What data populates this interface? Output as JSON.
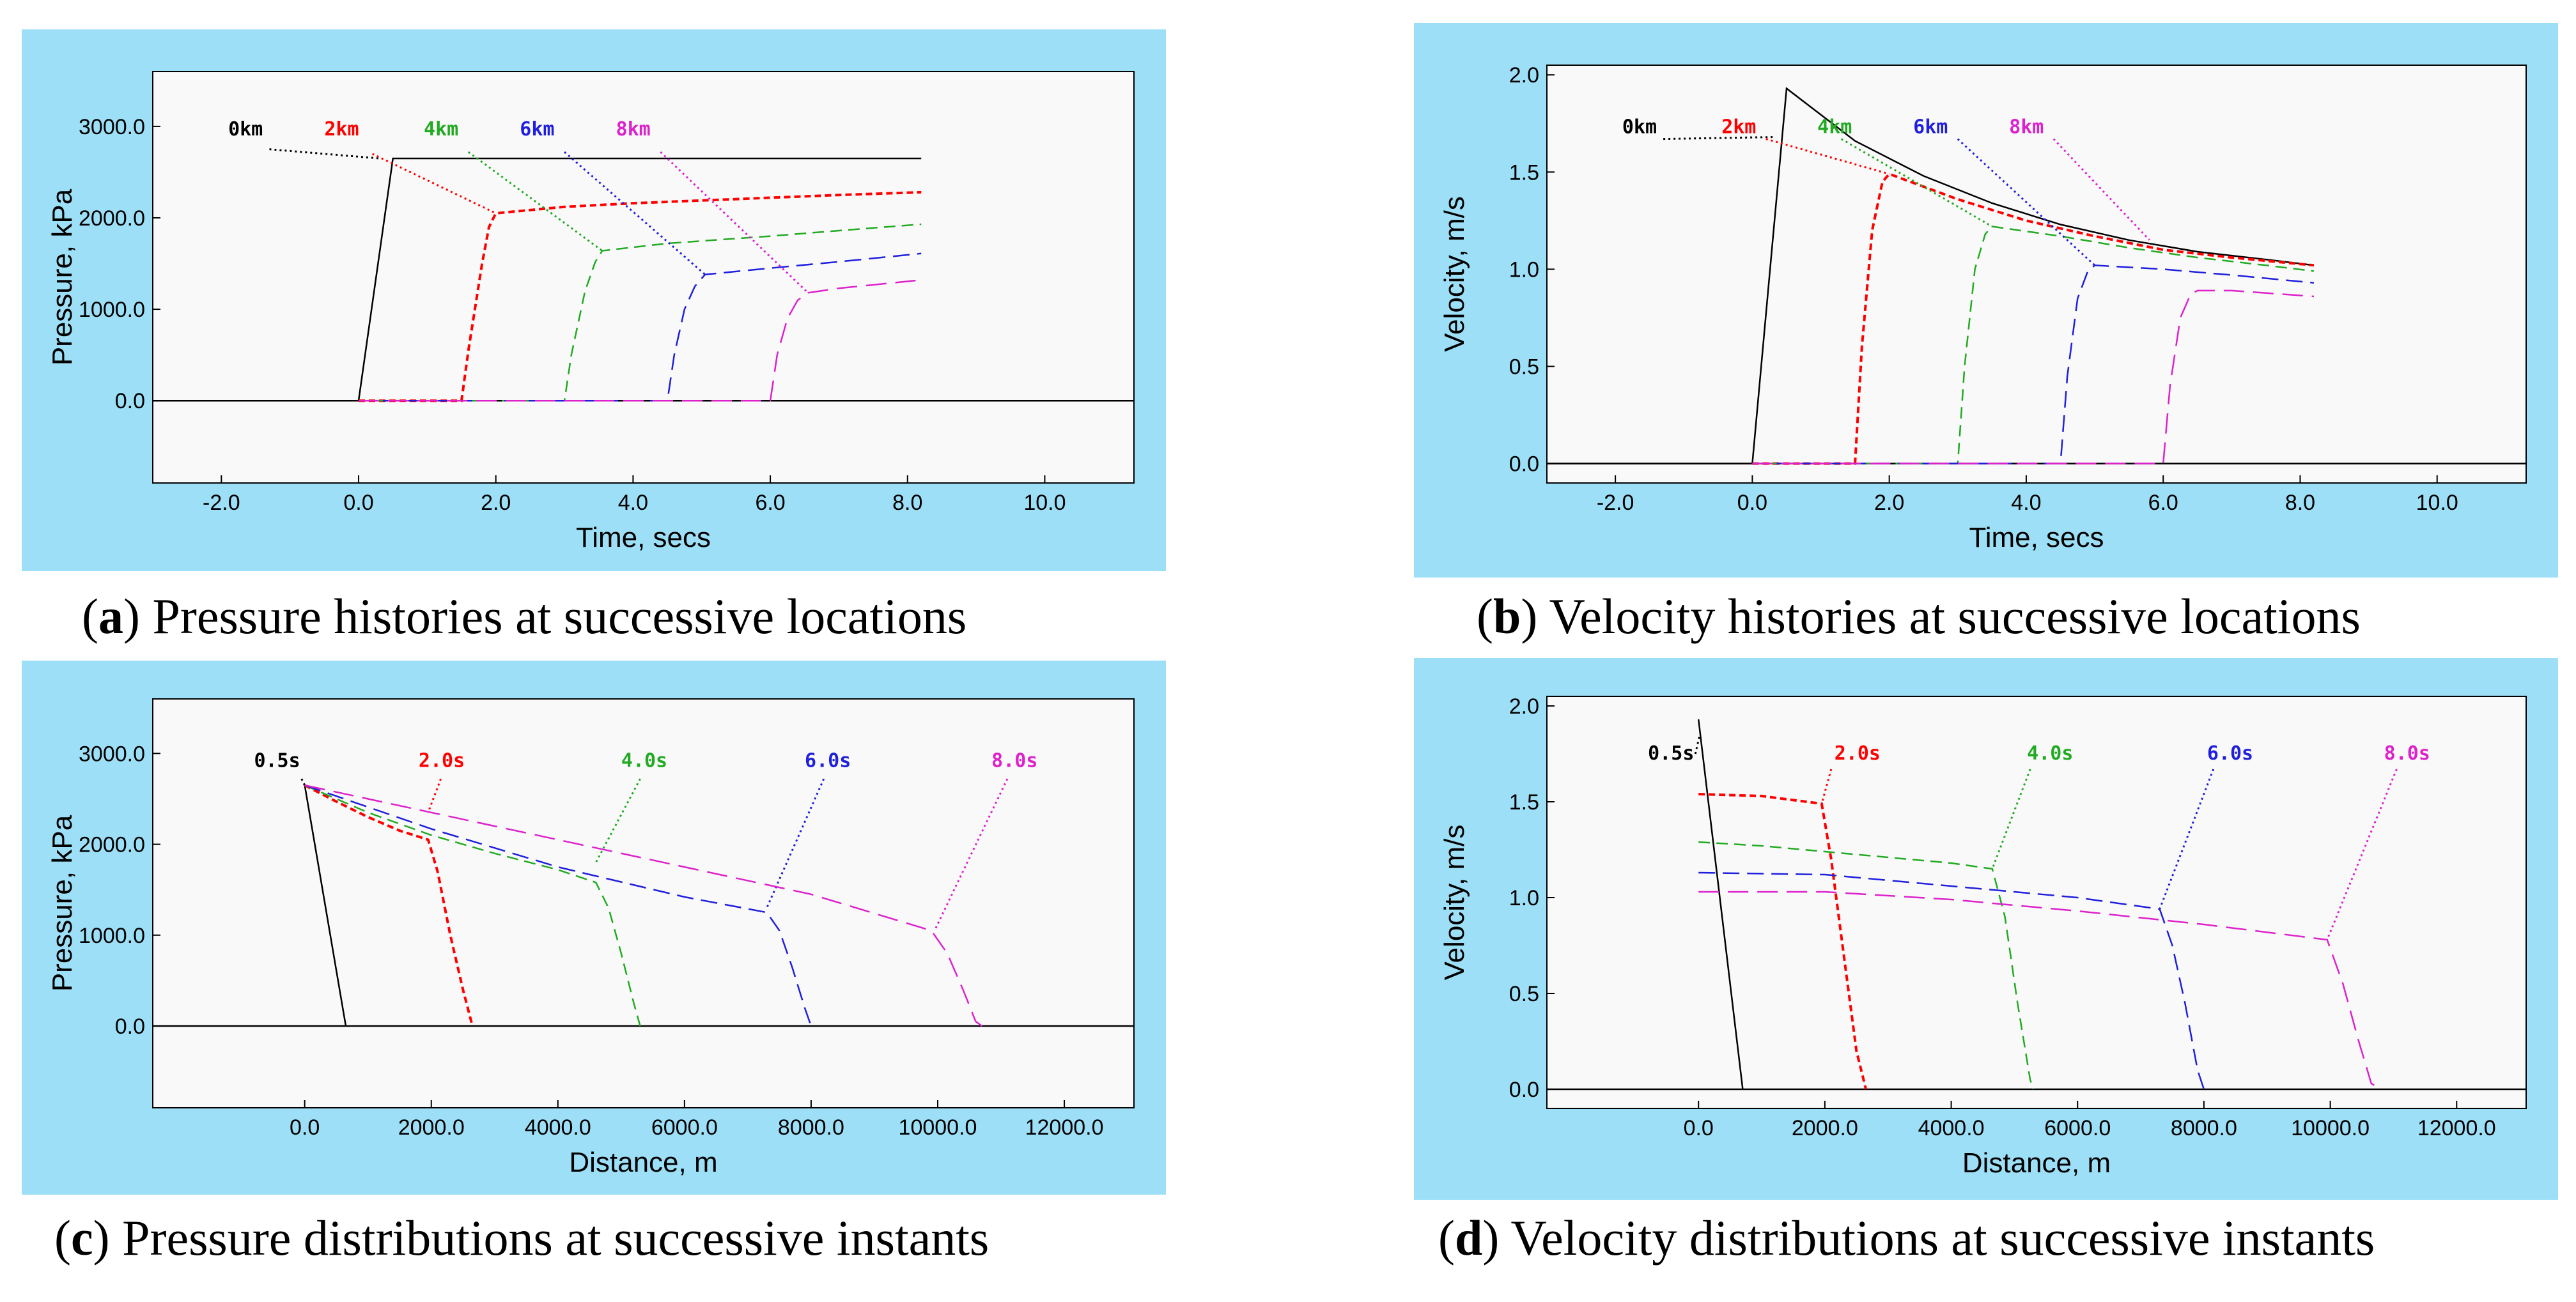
{
  "colors": {
    "panel_bg": "#9ddff6",
    "plot_bg": "#f9f9f9",
    "series": [
      "#000000",
      "#ff0000",
      "#22aa22",
      "#1f1fdd",
      "#dd22cc"
    ]
  },
  "captions": [
    {
      "letter": "a",
      "text": "Pressure histories at successive locations"
    },
    {
      "letter": "b",
      "text": "Velocity histories at successive locations"
    },
    {
      "letter": "c",
      "text": "Pressure distributions at successive instants"
    },
    {
      "letter": "d",
      "text": "Velocity distributions at successive instants"
    }
  ],
  "chart_data": [
    {
      "id": "a",
      "type": "line",
      "title": "Pressure histories at successive locations",
      "xlabel": "Time, secs",
      "ylabel": "Pressure, kPa",
      "xlim": [
        -3.0,
        11.3
      ],
      "ylim": [
        -900,
        3600
      ],
      "xticks": [
        -2.0,
        0.0,
        2.0,
        4.0,
        6.0,
        8.0,
        10.0
      ],
      "xtick_labels": [
        "-2.0",
        "0.0",
        "2.0",
        "4.0",
        "6.0",
        "8.0",
        "10.0"
      ],
      "yticks": [
        0,
        1000,
        2000,
        3000
      ],
      "ytick_labels": [
        "0.0",
        "1000.0",
        "2000.0",
        "3000.0"
      ],
      "series": [
        {
          "name": "0km",
          "label": "0km",
          "x": [
            -3.0,
            0.0,
            0.5,
            8.2
          ],
          "y": [
            0,
            0,
            2650,
            2650
          ],
          "label_x": -1.9,
          "label_y": 2900,
          "leader": [
            -1.3,
            2750,
            0.3,
            2650
          ]
        },
        {
          "name": "2km",
          "label": "2km",
          "x": [
            0.0,
            1.5,
            1.6,
            1.8,
            1.9,
            2.0,
            3.0,
            4.0,
            5.0,
            6.0,
            7.0,
            8.2
          ],
          "y": [
            0,
            0,
            550,
            1500,
            1900,
            2050,
            2120,
            2160,
            2190,
            2220,
            2250,
            2280
          ],
          "label_x": -0.5,
          "label_y": 2900,
          "leader": [
            0.2,
            2700,
            2.0,
            2050
          ]
        },
        {
          "name": "4km",
          "label": "4km",
          "x": [
            0.0,
            3.0,
            3.1,
            3.3,
            3.45,
            3.55,
            4.5,
            6.0,
            7.0,
            8.2
          ],
          "y": [
            0,
            0,
            500,
            1200,
            1520,
            1640,
            1720,
            1800,
            1860,
            1930
          ],
          "label_x": 0.95,
          "label_y": 2900,
          "leader": [
            1.6,
            2720,
            3.55,
            1640
          ]
        },
        {
          "name": "6km",
          "label": "6km",
          "x": [
            0.0,
            4.5,
            4.6,
            4.75,
            4.9,
            5.05,
            6.0,
            7.0,
            8.2
          ],
          "y": [
            0,
            0,
            500,
            1000,
            1250,
            1380,
            1450,
            1520,
            1610
          ],
          "label_x": 2.35,
          "label_y": 2900,
          "leader": [
            3.0,
            2720,
            5.05,
            1380
          ]
        },
        {
          "name": "8km",
          "label": "8km",
          "x": [
            0.0,
            6.0,
            6.1,
            6.25,
            6.4,
            6.55,
            7.0,
            8.2
          ],
          "y": [
            0,
            0,
            500,
            900,
            1100,
            1180,
            1230,
            1320
          ],
          "label_x": 3.75,
          "label_y": 2900,
          "leader": [
            4.4,
            2720,
            6.55,
            1180
          ]
        }
      ]
    },
    {
      "id": "b",
      "type": "line",
      "title": "Velocity histories at successive locations",
      "xlabel": "Time, secs",
      "ylabel": "Velocity, m/s",
      "xlim": [
        -3.0,
        11.3
      ],
      "ylim": [
        -0.1,
        2.05
      ],
      "xticks": [
        -2.0,
        0.0,
        2.0,
        4.0,
        6.0,
        8.0,
        10.0
      ],
      "xtick_labels": [
        "-2.0",
        "0.0",
        "2.0",
        "4.0",
        "6.0",
        "8.0",
        "10.0"
      ],
      "yticks": [
        0.0,
        0.5,
        1.0,
        1.5,
        2.0
      ],
      "ytick_labels": [
        "0.0",
        "0.5",
        "1.0",
        "1.5",
        "2.0"
      ],
      "series": [
        {
          "name": "0km",
          "label": "0km",
          "x": [
            -3.0,
            0.0,
            0.5,
            1.5,
            2.5,
            3.5,
            4.5,
            5.5,
            6.5,
            7.5,
            8.2
          ],
          "y": [
            0,
            0,
            1.93,
            1.66,
            1.48,
            1.34,
            1.23,
            1.15,
            1.09,
            1.05,
            1.02
          ],
          "label_x": -1.9,
          "label_y": 1.7,
          "leader": [
            -1.3,
            1.67,
            0.3,
            1.68
          ]
        },
        {
          "name": "2km",
          "label": "2km",
          "x": [
            0.0,
            1.5,
            1.6,
            1.75,
            1.9,
            2.0,
            3.0,
            4.0,
            5.0,
            6.0,
            7.0,
            8.2
          ],
          "y": [
            0,
            0,
            0.6,
            1.2,
            1.45,
            1.49,
            1.36,
            1.25,
            1.17,
            1.1,
            1.06,
            1.02
          ],
          "label_x": -0.45,
          "label_y": 1.7,
          "leader": [
            0.2,
            1.67,
            2.0,
            1.49
          ]
        },
        {
          "name": "4km",
          "label": "4km",
          "x": [
            0.0,
            3.0,
            3.1,
            3.25,
            3.4,
            3.5,
            4.5,
            5.5,
            6.5,
            7.5,
            8.2
          ],
          "y": [
            0,
            0,
            0.5,
            1.0,
            1.18,
            1.22,
            1.17,
            1.11,
            1.06,
            1.02,
            0.99
          ],
          "label_x": 0.95,
          "label_y": 1.7,
          "leader": [
            1.3,
            1.67,
            3.5,
            1.22
          ]
        },
        {
          "name": "6km",
          "label": "6km",
          "x": [
            0.0,
            4.5,
            4.6,
            4.75,
            4.9,
            5.0,
            6.0,
            7.0,
            8.2
          ],
          "y": [
            0,
            0,
            0.45,
            0.85,
            0.99,
            1.02,
            1.0,
            0.97,
            0.93
          ],
          "label_x": 2.35,
          "label_y": 1.7,
          "leader": [
            3.0,
            1.67,
            5.0,
            1.02
          ]
        },
        {
          "name": "8km",
          "label": "8km",
          "x": [
            0.0,
            6.0,
            6.1,
            6.25,
            6.4,
            6.5,
            7.0,
            8.2
          ],
          "y": [
            0,
            0,
            0.4,
            0.75,
            0.87,
            0.89,
            0.89,
            0.86
          ],
          "label_x": 3.75,
          "label_y": 1.7,
          "leader": [
            4.4,
            1.67,
            5.8,
            1.15
          ]
        }
      ]
    },
    {
      "id": "c",
      "type": "line",
      "title": "Pressure distributions at successive instants",
      "xlabel": "Distance, m",
      "ylabel": "Pressure, kPa",
      "xlim": [
        -2400,
        13100
      ],
      "ylim": [
        -900,
        3600
      ],
      "xticks": [
        0,
        2000,
        4000,
        6000,
        8000,
        10000,
        12000
      ],
      "xtick_labels": [
        "0.0",
        "2000.0",
        "4000.0",
        "6000.0",
        "8000.0",
        "10000.0",
        "12000.0"
      ],
      "yticks": [
        0,
        1000,
        2000,
        3000
      ],
      "ytick_labels": [
        "0.0",
        "1000.0",
        "2000.0",
        "3000.0"
      ],
      "series": [
        {
          "name": "0.5s",
          "label": "0.5s",
          "x": [
            0,
            650
          ],
          "y": [
            2650,
            0
          ],
          "label_x": -800,
          "label_y": 2850,
          "leader": [
            -50,
            2720,
            0,
            2650
          ]
        },
        {
          "name": "2.0s",
          "label": "2.0s",
          "x": [
            0,
            500,
            1000,
            1500,
            1950,
            2100,
            2300,
            2500,
            2650
          ],
          "y": [
            2650,
            2470,
            2300,
            2150,
            2050,
            1700,
            1000,
            400,
            0
          ],
          "label_x": 1800,
          "label_y": 2850,
          "leader": [
            2150,
            2720,
            1950,
            2350
          ]
        },
        {
          "name": "4.0s",
          "label": "4.0s",
          "x": [
            0,
            1000,
            2000,
            3000,
            4000,
            4600,
            4800,
            5000,
            5200,
            5300
          ],
          "y": [
            2650,
            2350,
            2100,
            1900,
            1720,
            1580,
            1300,
            800,
            250,
            0
          ],
          "label_x": 5000,
          "label_y": 2850,
          "leader": [
            5300,
            2720,
            4600,
            1800
          ]
        },
        {
          "name": "6.0s",
          "label": "6.0s",
          "x": [
            0,
            2000,
            4000,
            6000,
            7300,
            7500,
            7700,
            7900,
            8000
          ],
          "y": [
            2650,
            2170,
            1750,
            1420,
            1250,
            1050,
            650,
            200,
            0
          ],
          "label_x": 7900,
          "label_y": 2850,
          "leader": [
            8200,
            2720,
            7300,
            1300
          ]
        },
        {
          "name": "8.0s",
          "label": "8.0s",
          "x": [
            0,
            2000,
            4000,
            6000,
            8000,
            9900,
            10150,
            10400,
            10600,
            10700
          ],
          "y": [
            2650,
            2350,
            2050,
            1750,
            1450,
            1050,
            800,
            400,
            50,
            0
          ],
          "label_x": 10850,
          "label_y": 2850,
          "leader": [
            11100,
            2720,
            9950,
            1050
          ]
        }
      ]
    },
    {
      "id": "d",
      "type": "line",
      "title": "Velocity distributions at successive instants",
      "xlabel": "Distance, m",
      "ylabel": "Velocity, m/s",
      "xlim": [
        -2400,
        13100
      ],
      "ylim": [
        -0.1,
        2.05
      ],
      "xticks": [
        0,
        2000,
        4000,
        6000,
        8000,
        10000,
        12000
      ],
      "xtick_labels": [
        "0.0",
        "2000.0",
        "4000.0",
        "6000.0",
        "8000.0",
        "10000.0",
        "12000.0"
      ],
      "yticks": [
        0.0,
        0.5,
        1.0,
        1.5,
        2.0
      ],
      "ytick_labels": [
        "0.0",
        "0.5",
        "1.0",
        "1.5",
        "2.0"
      ],
      "series": [
        {
          "name": "0.5s",
          "label": "0.5s",
          "x": [
            0,
            700
          ],
          "y": [
            1.93,
            0
          ],
          "label_x": -800,
          "label_y": 1.72,
          "leader": [
            -50,
            1.75,
            20,
            1.85
          ]
        },
        {
          "name": "2.0s",
          "label": "2.0s",
          "x": [
            0,
            1000,
            1950,
            2100,
            2300,
            2500,
            2650
          ],
          "y": [
            1.54,
            1.53,
            1.49,
            1.2,
            0.7,
            0.2,
            0
          ],
          "label_x": 2150,
          "label_y": 1.72,
          "leader": [
            2100,
            1.67,
            1950,
            1.49
          ]
        },
        {
          "name": "4.0s",
          "label": "4.0s",
          "x": [
            0,
            1000,
            2000,
            3000,
            4000,
            4650,
            4850,
            5050,
            5250,
            5300
          ],
          "y": [
            1.29,
            1.27,
            1.24,
            1.21,
            1.18,
            1.15,
            0.9,
            0.45,
            0.05,
            0
          ],
          "label_x": 5200,
          "label_y": 1.72,
          "leader": [
            5250,
            1.67,
            4650,
            1.15
          ]
        },
        {
          "name": "6.0s",
          "label": "6.0s",
          "x": [
            0,
            2000,
            4000,
            6000,
            7300,
            7500,
            7700,
            7900,
            8000
          ],
          "y": [
            1.13,
            1.12,
            1.06,
            1.0,
            0.94,
            0.75,
            0.45,
            0.1,
            0
          ],
          "label_x": 8050,
          "label_y": 1.72,
          "leader": [
            8150,
            1.67,
            7300,
            0.94
          ]
        },
        {
          "name": "8.0s",
          "label": "8.0s",
          "x": [
            0,
            2000,
            4000,
            6000,
            8000,
            9950,
            10200,
            10450,
            10650,
            10800
          ],
          "y": [
            1.03,
            1.03,
            0.99,
            0.93,
            0.86,
            0.78,
            0.55,
            0.25,
            0.03,
            0
          ],
          "label_x": 10850,
          "label_y": 1.72,
          "leader": [
            11050,
            1.67,
            9950,
            0.78
          ]
        }
      ]
    }
  ]
}
